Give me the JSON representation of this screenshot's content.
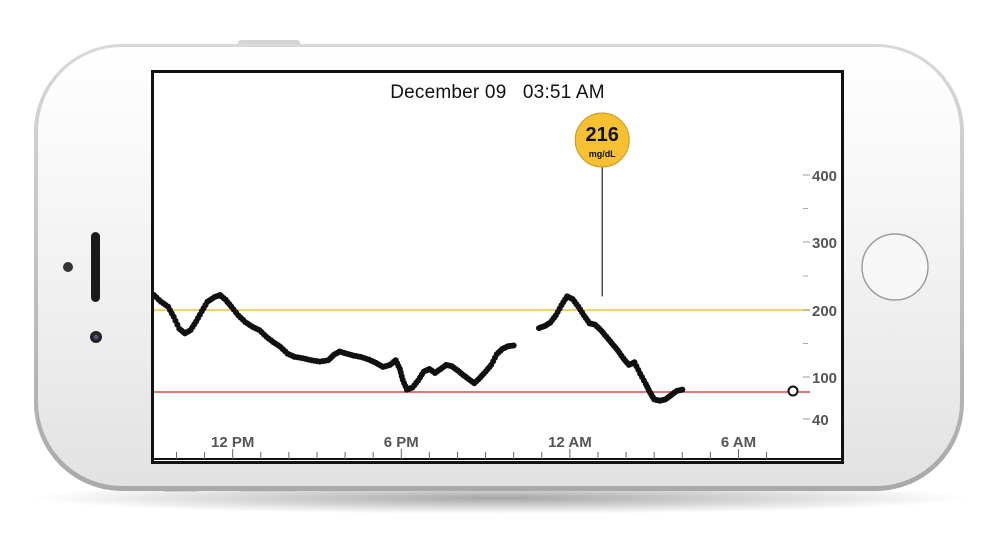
{
  "device": {
    "frame_color": "#f4f4f4",
    "screen_bg": "#ffffff"
  },
  "header": {
    "date": "December 09",
    "time": "03:51 AM"
  },
  "callout": {
    "value": "216",
    "unit": "mg/dL",
    "color": "#f5c132",
    "x_hours": 25.15
  },
  "chart_data": {
    "type": "scatter",
    "title": "",
    "xlabel": "",
    "ylabel": "",
    "x_unit": "hours after 12 AM (previous day)",
    "xlim": [
      9.2,
      28.2
    ],
    "ylim": [
      20,
      500
    ],
    "x_tick_labels": [
      {
        "x": 12,
        "label": "12 PM"
      },
      {
        "x": 18,
        "label": "6 PM"
      },
      {
        "x": 24,
        "label": "12 AM"
      },
      {
        "x": 30,
        "label": "6 AM"
      }
    ],
    "y_ticks": [
      {
        "y": 40,
        "label": "40"
      },
      {
        "y": 100,
        "label": "100"
      },
      {
        "y": 200,
        "label": "200"
      },
      {
        "y": 300,
        "label": "300"
      },
      {
        "y": 400,
        "label": "400"
      }
    ],
    "y_minor_ticks": [
      150,
      250,
      350
    ],
    "high_threshold": {
      "value": 200,
      "color": "#f5c132"
    },
    "low_threshold": {
      "value": 80,
      "color": "#d84a4a"
    },
    "series_color": "#111111",
    "current_reading": {
      "x": 28.65,
      "y": 82
    },
    "series": [
      {
        "name": "",
        "points": [
          [
            9.2,
            222
          ],
          [
            9.45,
            212
          ],
          [
            9.7,
            205
          ],
          [
            9.9,
            190
          ],
          [
            10.1,
            172
          ],
          [
            10.3,
            165
          ],
          [
            10.5,
            170
          ],
          [
            10.7,
            183
          ],
          [
            10.9,
            198
          ],
          [
            11.1,
            212
          ],
          [
            11.35,
            219
          ],
          [
            11.55,
            222
          ],
          [
            11.75,
            215
          ],
          [
            11.95,
            205
          ],
          [
            12.2,
            192
          ],
          [
            12.45,
            182
          ],
          [
            12.7,
            175
          ],
          [
            12.95,
            170
          ],
          [
            13.2,
            160
          ],
          [
            13.45,
            152
          ],
          [
            13.7,
            145
          ],
          [
            13.95,
            135
          ],
          [
            14.2,
            130
          ],
          [
            14.5,
            128
          ],
          [
            14.8,
            125
          ],
          [
            15.1,
            123
          ],
          [
            15.4,
            125
          ],
          [
            15.6,
            133
          ],
          [
            15.8,
            138
          ],
          [
            16.05,
            135
          ],
          [
            16.3,
            132
          ],
          [
            16.55,
            130
          ],
          [
            16.85,
            126
          ],
          [
            17.1,
            121
          ],
          [
            17.35,
            115
          ],
          [
            17.6,
            118
          ],
          [
            17.8,
            125
          ],
          [
            17.95,
            112
          ],
          [
            18.05,
            96
          ],
          [
            18.2,
            82
          ],
          [
            18.4,
            85
          ],
          [
            18.6,
            95
          ],
          [
            18.8,
            108
          ],
          [
            19.0,
            112
          ],
          [
            19.2,
            106
          ],
          [
            19.4,
            112
          ],
          [
            19.6,
            118
          ],
          [
            19.8,
            116
          ],
          [
            20.0,
            110
          ],
          [
            20.2,
            103
          ],
          [
            20.4,
            97
          ],
          [
            20.6,
            91
          ],
          [
            20.8,
            99
          ],
          [
            21.0,
            108
          ],
          [
            21.2,
            118
          ],
          [
            21.4,
            134
          ],
          [
            21.6,
            142
          ],
          [
            21.8,
            146
          ],
          [
            22.0,
            147
          ]
        ]
      },
      {
        "name": "",
        "points": [
          [
            22.9,
            173
          ],
          [
            23.1,
            176
          ],
          [
            23.3,
            181
          ],
          [
            23.5,
            192
          ],
          [
            23.7,
            207
          ],
          [
            23.9,
            220
          ],
          [
            24.1,
            216
          ],
          [
            24.3,
            205
          ],
          [
            24.5,
            192
          ],
          [
            24.7,
            180
          ],
          [
            24.9,
            178
          ],
          [
            25.1,
            170
          ],
          [
            25.3,
            160
          ],
          [
            25.5,
            150
          ],
          [
            25.7,
            140
          ],
          [
            25.9,
            128
          ],
          [
            26.1,
            118
          ],
          [
            26.3,
            122
          ],
          [
            26.5,
            105
          ],
          [
            26.7,
            90
          ],
          [
            26.85,
            78
          ],
          [
            27.0,
            68
          ],
          [
            27.2,
            66
          ],
          [
            27.4,
            68
          ],
          [
            27.6,
            74
          ],
          [
            27.8,
            80
          ],
          [
            28.0,
            82
          ]
        ]
      }
    ]
  }
}
